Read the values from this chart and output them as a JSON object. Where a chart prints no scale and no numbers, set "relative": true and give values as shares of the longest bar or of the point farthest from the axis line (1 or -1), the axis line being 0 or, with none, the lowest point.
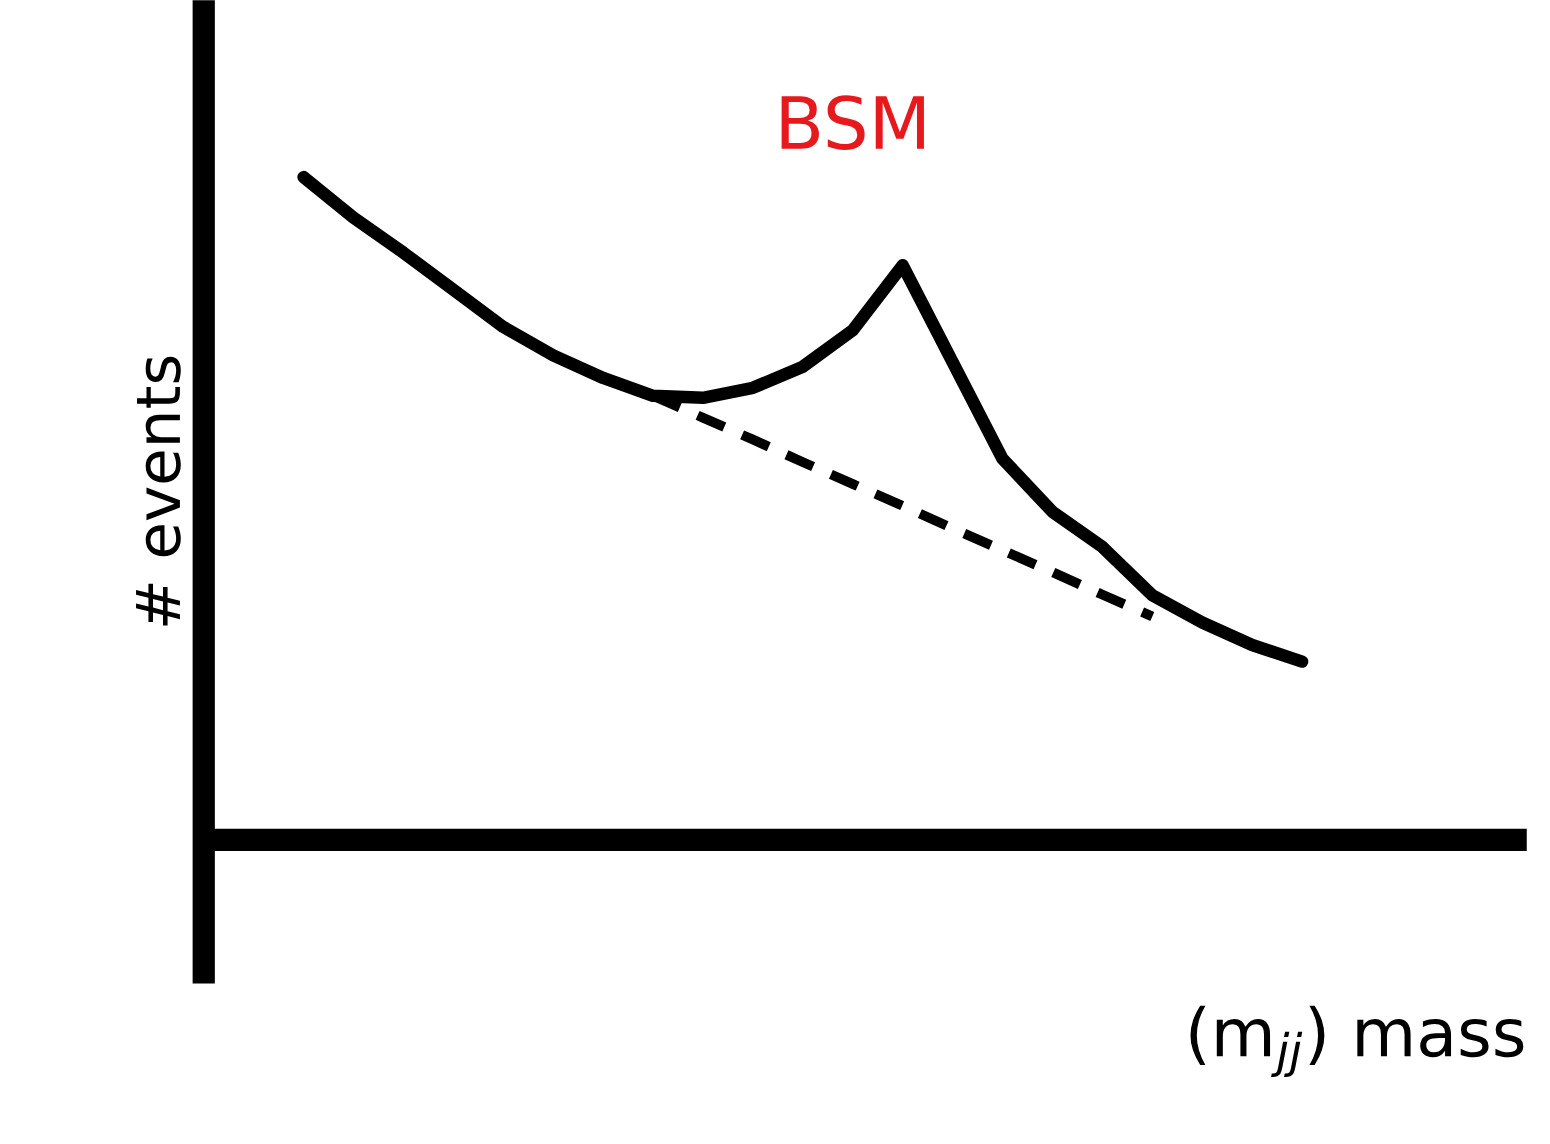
{
  "chart_data": {
    "type": "line",
    "relative": true,
    "ylabel": "# events",
    "xlabel": "(m$_{jj}$) mass",
    "annotations": [
      "BSM"
    ],
    "categories": [
      null,
      null,
      null,
      null,
      null,
      null,
      null,
      null,
      null,
      null,
      null,
      null,
      null,
      null,
      null,
      null,
      null,
      null,
      null,
      null,
      null
    ],
    "series": [
      {
        "color": "#000000",
        "line_style": "solid",
        "values": [
          1,
          0.939,
          0.886,
          0.83,
          0.774,
          0.731,
          0.697,
          0.67,
          0.667,
          0.682,
          0.714,
          0.769,
          0.867,
          0.721,
          0.575,
          0.495,
          0.442,
          0.369,
          0.328,
          0.294,
          0.269
        ]
      },
      {
        "color": "#000000",
        "line_style": "dashed",
        "values": [
          null,
          null,
          null,
          null,
          null,
          null,
          null,
          0.67,
          0.637,
          0.604,
          0.57,
          0.537,
          0.504,
          0.47,
          0.437,
          0.404,
          0.37,
          0.337,
          null,
          null,
          null
        ]
      }
    ],
    "legend": false,
    "marker": "none"
  }
}
